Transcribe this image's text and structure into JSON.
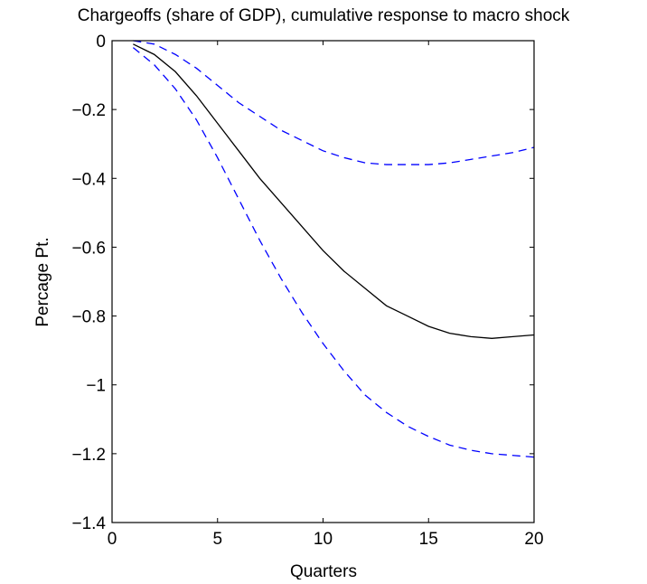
{
  "chart_data": {
    "type": "line",
    "title": "Chargeoffs (share of GDP), cumulative response to macro shock",
    "xlabel": "Quarters",
    "ylabel": "Percage Pt.",
    "xlim": [
      0,
      20
    ],
    "ylim": [
      -1.4,
      0
    ],
    "x_ticks": [
      0,
      5,
      10,
      15,
      20
    ],
    "x_tick_labels": [
      "0",
      "5",
      "10",
      "15",
      "20"
    ],
    "y_ticks": [
      0,
      -0.2,
      -0.4,
      -0.6,
      -0.8,
      -1,
      -1.2,
      -1.4
    ],
    "y_tick_labels": [
      "0",
      "−0.2",
      "−0.4",
      "−0.6",
      "−0.8",
      "−1",
      "−1.2",
      "−1.4"
    ],
    "grid": false,
    "legend": "none",
    "x": [
      1,
      2,
      3,
      4,
      5,
      6,
      7,
      8,
      9,
      10,
      11,
      12,
      13,
      14,
      15,
      16,
      17,
      18,
      19,
      20
    ],
    "series": [
      {
        "role": "point-estimate",
        "style": "solid",
        "color": "#000000",
        "values": [
          -0.01,
          -0.04,
          -0.09,
          -0.16,
          -0.24,
          -0.32,
          -0.4,
          -0.47,
          -0.54,
          -0.61,
          -0.67,
          -0.72,
          -0.77,
          -0.8,
          -0.83,
          -0.85,
          -0.86,
          -0.865,
          -0.86,
          -0.855
        ]
      },
      {
        "role": "upper-band",
        "style": "dashed",
        "color": "#0000ff",
        "values": [
          0.0,
          -0.01,
          -0.04,
          -0.08,
          -0.13,
          -0.18,
          -0.22,
          -0.26,
          -0.29,
          -0.32,
          -0.34,
          -0.355,
          -0.36,
          -0.36,
          -0.36,
          -0.355,
          -0.345,
          -0.335,
          -0.325,
          -0.31
        ]
      },
      {
        "role": "lower-band",
        "style": "dashed",
        "color": "#0000ff",
        "values": [
          -0.02,
          -0.07,
          -0.14,
          -0.23,
          -0.34,
          -0.46,
          -0.58,
          -0.69,
          -0.79,
          -0.88,
          -0.96,
          -1.03,
          -1.08,
          -1.12,
          -1.15,
          -1.175,
          -1.19,
          -1.2,
          -1.205,
          -1.21
        ]
      }
    ]
  }
}
